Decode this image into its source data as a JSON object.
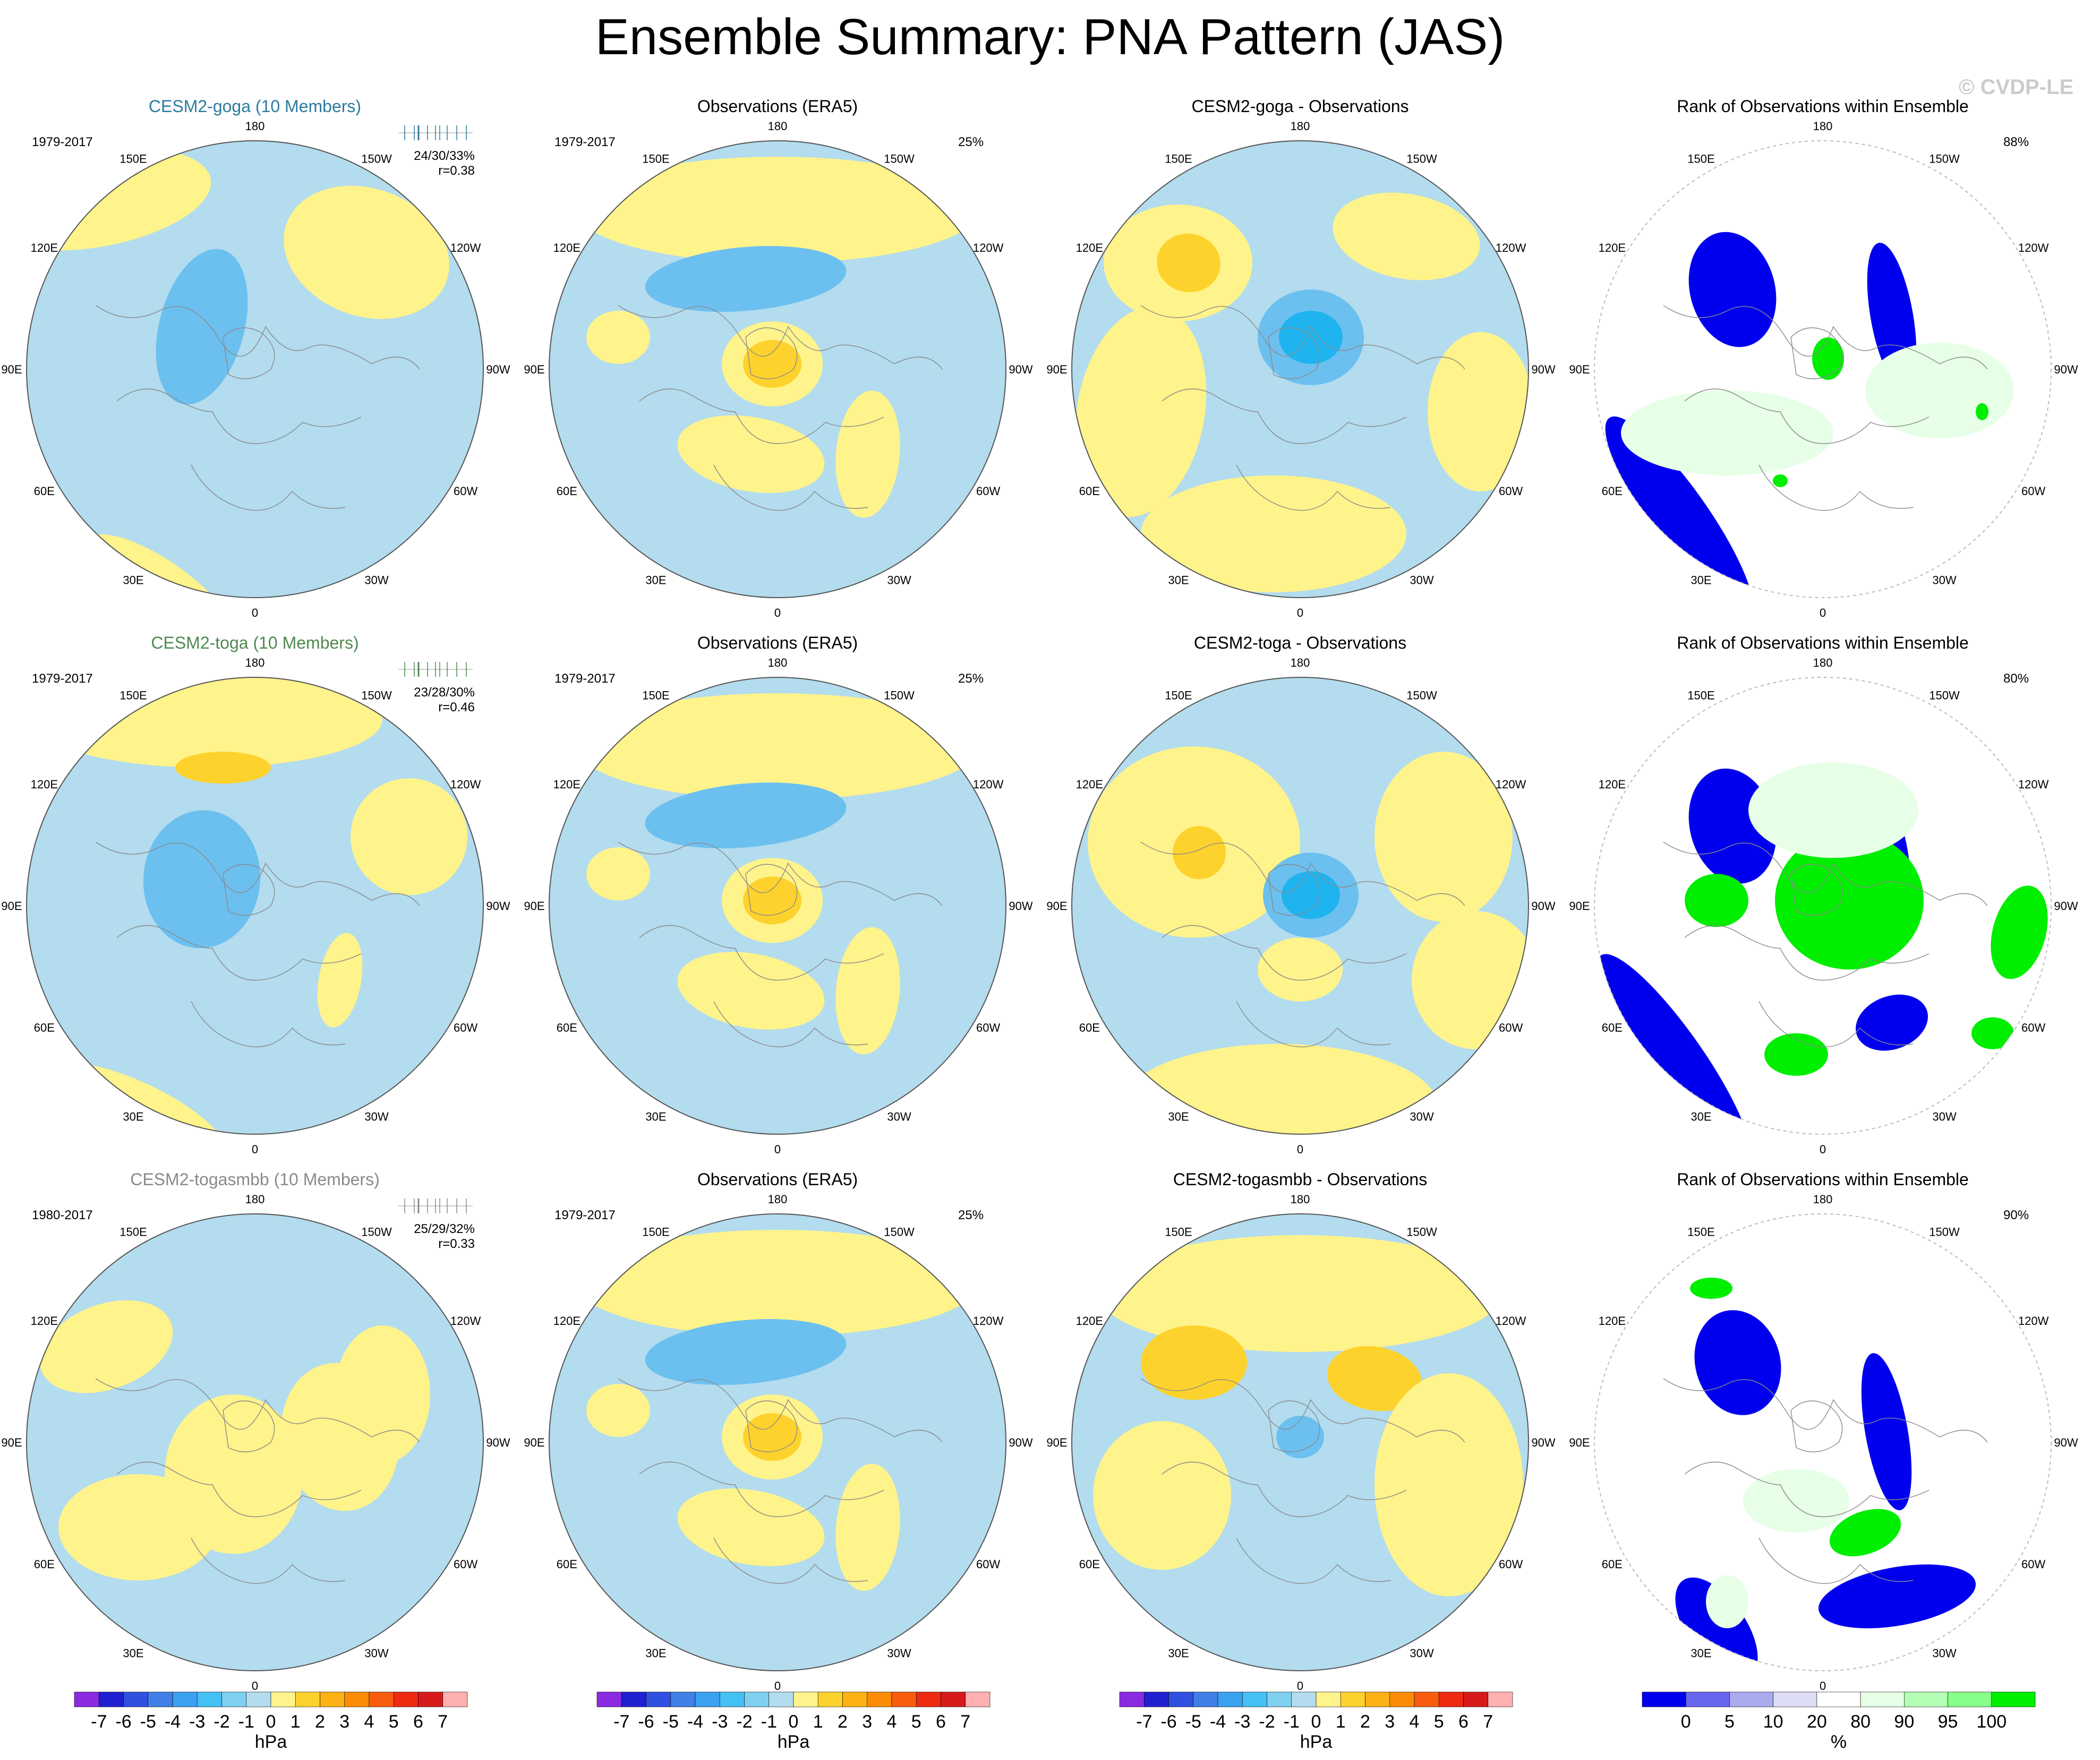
{
  "title": "Ensemble Summary: PNA Pattern (JAS)",
  "watermark": "© CVDP-LE",
  "colors": {
    "ensemble_goga": "#2d7aa0",
    "ensemble_toga": "#4f8a4f",
    "ensemble_togasmbb": "#8a8a8a",
    "neg1": "#b3dcee",
    "neg2": "#6cc0ef",
    "neg3": "#1fb4f0",
    "pos1": "#fff38b",
    "pos2": "#fed22c",
    "rank_low": "#0000ee",
    "rank_high": "#00ee00"
  },
  "map_labels": {
    "lon": [
      "180",
      "150W",
      "120W",
      "90W",
      "60W",
      "30W",
      "0",
      "30E",
      "60E",
      "90E",
      "120E",
      "150E"
    ]
  },
  "rows": [
    {
      "ensemble": {
        "title": "CESM2-goga (10 Members)",
        "color_key": "ensemble_goga",
        "period": "1979-2017",
        "stats": "24/30/33%",
        "r": "r=0.38"
      },
      "obs": {
        "title": "Observations (ERA5)",
        "period": "1979-2017",
        "pct": "25%"
      },
      "diff": {
        "title": "CESM2-goga - Observations"
      },
      "rank": {
        "title": "Rank of Observations within Ensemble",
        "pct": "88%"
      }
    },
    {
      "ensemble": {
        "title": "CESM2-toga (10 Members)",
        "color_key": "ensemble_toga",
        "period": "1979-2017",
        "stats": "23/28/30%",
        "r": "r=0.46"
      },
      "obs": {
        "title": "Observations (ERA5)",
        "period": "1979-2017",
        "pct": "25%"
      },
      "diff": {
        "title": "CESM2-toga - Observations"
      },
      "rank": {
        "title": "Rank of Observations within Ensemble",
        "pct": "80%"
      }
    },
    {
      "ensemble": {
        "title": "CESM2-togasmbb (10 Members)",
        "color_key": "ensemble_togasmbb",
        "period": "1980-2017",
        "stats": "25/29/32%",
        "r": "r=0.33"
      },
      "obs": {
        "title": "Observations (ERA5)",
        "period": "1979-2017",
        "pct": "25%"
      },
      "diff": {
        "title": "CESM2-togasmbb - Observations"
      },
      "rank": {
        "title": "Rank of Observations within Ensemble",
        "pct": "90%"
      }
    }
  ],
  "colorbar_hpa": {
    "unit": "hPa",
    "ticks": [
      "-7",
      "-6",
      "-5",
      "-4",
      "-3",
      "-2",
      "-1",
      "0",
      "1",
      "2",
      "3",
      "4",
      "5",
      "6",
      "7"
    ],
    "colors": [
      "#8a2be2",
      "#2020d0",
      "#3050e0",
      "#3f7fe6",
      "#3aa0f0",
      "#45c0f5",
      "#7fd0f0",
      "#b3dcee",
      "#fff38b",
      "#fed22c",
      "#fcb214",
      "#fb8c05",
      "#f85c0e",
      "#ee2a10",
      "#d61a1a",
      "#ffb0b0"
    ]
  },
  "colorbar_rank": {
    "unit": "%",
    "ticks": [
      "0",
      "5",
      "10",
      "20",
      "80",
      "90",
      "95",
      "100"
    ],
    "colors": [
      "#0000ee",
      "#6666ee",
      "#aaaaee",
      "#ddddf6",
      "#ffffff",
      "#e6ffe6",
      "#b3ffb3",
      "#88ff88",
      "#00ee00"
    ]
  },
  "chart_data": [
    {
      "type": "heatmap",
      "title": "CESM2-goga (10 Members)",
      "period": "1979-2017",
      "percent_variance": "24/30/33%",
      "pattern_correlation": 0.38,
      "unit": "hPa"
    },
    {
      "type": "heatmap",
      "title": "Observations (ERA5)",
      "period": "1979-2017",
      "percent_variance": "25%",
      "unit": "hPa"
    },
    {
      "type": "heatmap",
      "title": "CESM2-goga - Observations",
      "unit": "hPa"
    },
    {
      "type": "heatmap",
      "title": "Rank of Observations within Ensemble",
      "percent": "88%",
      "unit": "%"
    },
    {
      "type": "heatmap",
      "title": "CESM2-toga (10 Members)",
      "period": "1979-2017",
      "percent_variance": "23/28/30%",
      "pattern_correlation": 0.46,
      "unit": "hPa"
    },
    {
      "type": "heatmap",
      "title": "Observations (ERA5)",
      "period": "1979-2017",
      "percent_variance": "25%",
      "unit": "hPa"
    },
    {
      "type": "heatmap",
      "title": "CESM2-toga - Observations",
      "unit": "hPa"
    },
    {
      "type": "heatmap",
      "title": "Rank of Observations within Ensemble",
      "percent": "80%",
      "unit": "%"
    },
    {
      "type": "heatmap",
      "title": "CESM2-togasmbb (10 Members)",
      "period": "1980-2017",
      "percent_variance": "25/29/32%",
      "pattern_correlation": 0.33,
      "unit": "hPa"
    },
    {
      "type": "heatmap",
      "title": "Observations (ERA5)",
      "period": "1979-2017",
      "percent_variance": "25%",
      "unit": "hPa"
    },
    {
      "type": "heatmap",
      "title": "CESM2-togasmbb - Observations",
      "unit": "hPa"
    },
    {
      "type": "heatmap",
      "title": "Rank of Observations within Ensemble",
      "percent": "90%",
      "unit": "%"
    }
  ]
}
